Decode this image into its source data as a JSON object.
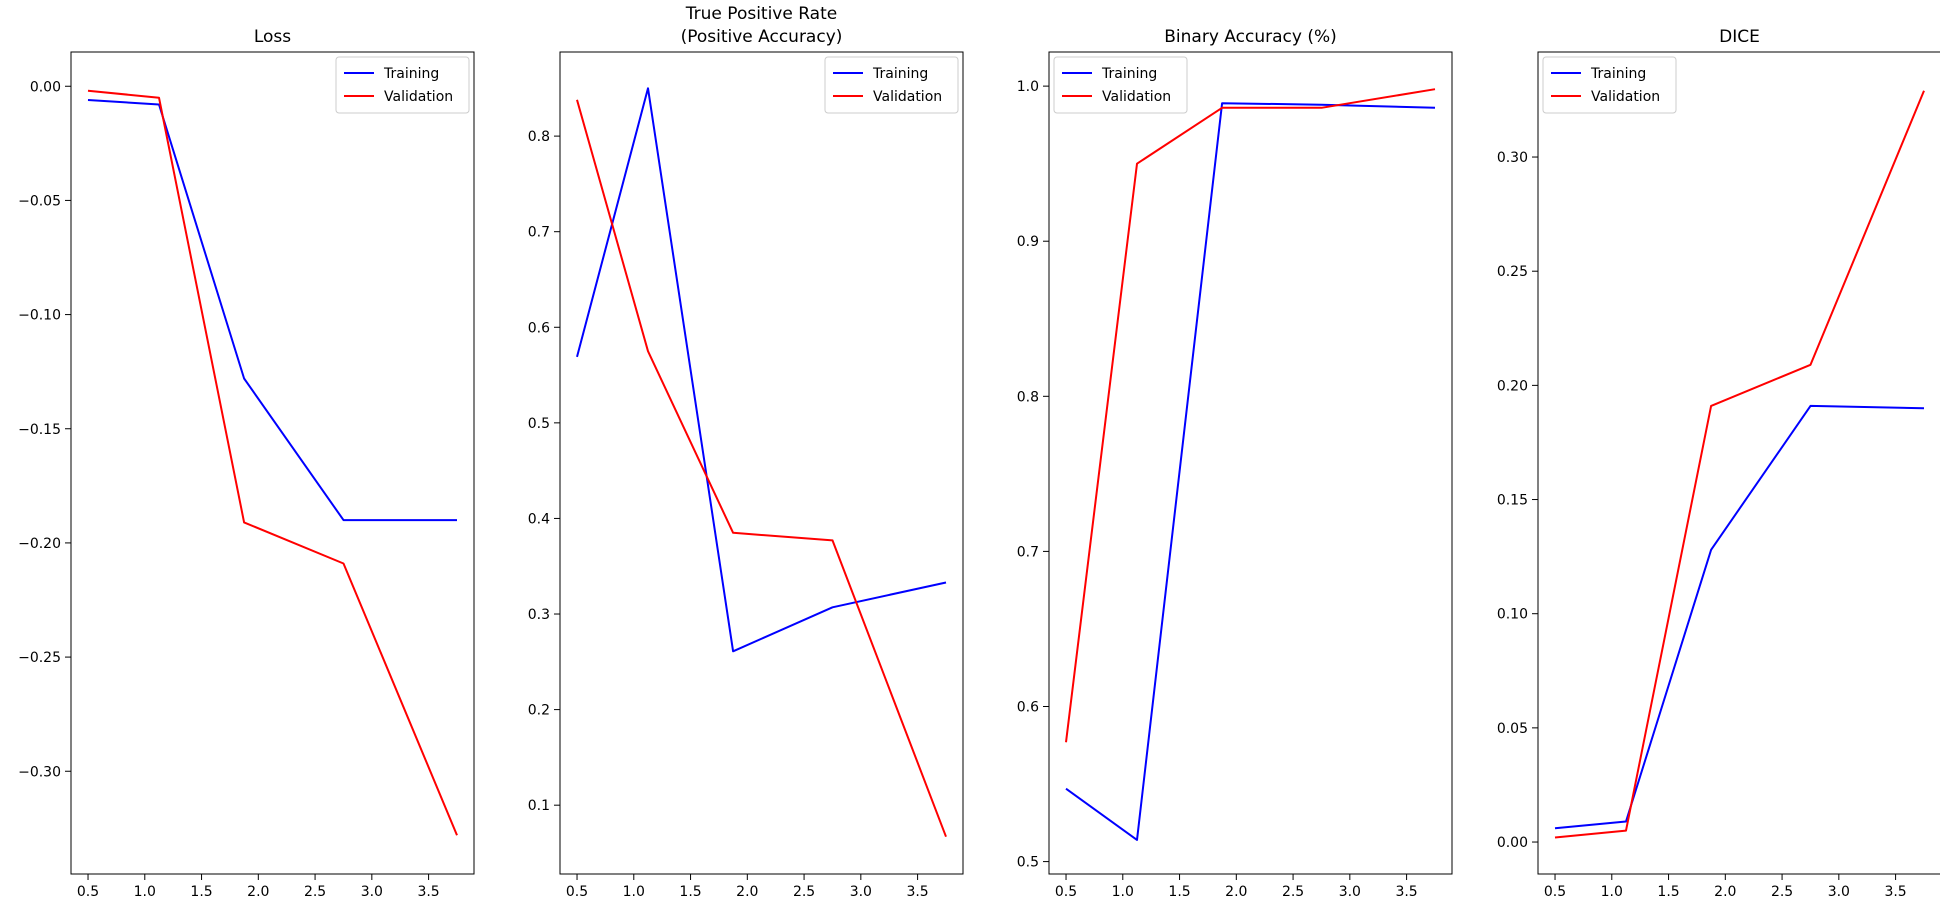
{
  "chart_data": [
    {
      "type": "line",
      "title": "Loss",
      "x": [
        0.5,
        1.125,
        1.875,
        2.75,
        3.75
      ],
      "series": [
        {
          "name": "Training",
          "color": "#0000ff",
          "values": [
            -0.006,
            -0.008,
            -0.128,
            -0.19,
            -0.19
          ]
        },
        {
          "name": "Validation",
          "color": "#ff0000",
          "values": [
            -0.002,
            -0.005,
            -0.191,
            -0.209,
            -0.328
          ]
        }
      ],
      "xlim": [
        0.35,
        3.9
      ],
      "ylim": [
        -0.345,
        0.015
      ],
      "xticks": [
        {
          "value": 0.5,
          "label": "0.5"
        },
        {
          "value": 1.0,
          "label": "1.0"
        },
        {
          "value": 1.5,
          "label": "1.5"
        },
        {
          "value": 2.0,
          "label": "2.0"
        },
        {
          "value": 2.5,
          "label": "2.5"
        },
        {
          "value": 3.0,
          "label": "3.0"
        },
        {
          "value": 3.5,
          "label": "3.5"
        }
      ],
      "yticks": [
        {
          "value": 0.0,
          "label": "0.00"
        },
        {
          "value": -0.05,
          "label": "−0.05"
        },
        {
          "value": -0.1,
          "label": "−0.10"
        },
        {
          "value": -0.15,
          "label": "−0.15"
        },
        {
          "value": -0.2,
          "label": "−0.20"
        },
        {
          "value": -0.25,
          "label": "−0.25"
        },
        {
          "value": -0.3,
          "label": "−0.30"
        }
      ],
      "legend": "top-right",
      "grid": false
    },
    {
      "type": "line",
      "title": "True Positive Rate",
      "subtitle": "(Positive Accuracy)",
      "x": [
        0.5,
        1.125,
        1.875,
        2.75,
        3.75
      ],
      "series": [
        {
          "name": "Training",
          "color": "#0000ff",
          "values": [
            0.569,
            0.85,
            0.261,
            0.307,
            0.333
          ]
        },
        {
          "name": "Validation",
          "color": "#ff0000",
          "values": [
            0.838,
            0.575,
            0.385,
            0.377,
            0.067
          ]
        }
      ],
      "xlim": [
        0.35,
        3.9
      ],
      "ylim": [
        0.028,
        0.888
      ],
      "xticks": [
        {
          "value": 0.5,
          "label": "0.5"
        },
        {
          "value": 1.0,
          "label": "1.0"
        },
        {
          "value": 1.5,
          "label": "1.5"
        },
        {
          "value": 2.0,
          "label": "2.0"
        },
        {
          "value": 2.5,
          "label": "2.5"
        },
        {
          "value": 3.0,
          "label": "3.0"
        },
        {
          "value": 3.5,
          "label": "3.5"
        }
      ],
      "yticks": [
        {
          "value": 0.1,
          "label": "0.1"
        },
        {
          "value": 0.2,
          "label": "0.2"
        },
        {
          "value": 0.3,
          "label": "0.3"
        },
        {
          "value": 0.4,
          "label": "0.4"
        },
        {
          "value": 0.5,
          "label": "0.5"
        },
        {
          "value": 0.6,
          "label": "0.6"
        },
        {
          "value": 0.7,
          "label": "0.7"
        },
        {
          "value": 0.8,
          "label": "0.8"
        }
      ],
      "legend": "top-right",
      "grid": false
    },
    {
      "type": "line",
      "title": "Binary Accuracy (%)",
      "x": [
        0.5,
        1.125,
        1.875,
        2.75,
        3.75
      ],
      "series": [
        {
          "name": "Training",
          "color": "#0000ff",
          "values": [
            0.547,
            0.514,
            0.989,
            0.988,
            0.986
          ]
        },
        {
          "name": "Validation",
          "color": "#ff0000",
          "values": [
            0.577,
            0.95,
            0.986,
            0.986,
            0.998
          ]
        }
      ],
      "xlim": [
        0.35,
        3.9
      ],
      "ylim": [
        0.492,
        1.022
      ],
      "xticks": [
        {
          "value": 0.5,
          "label": "0.5"
        },
        {
          "value": 1.0,
          "label": "1.0"
        },
        {
          "value": 1.5,
          "label": "1.5"
        },
        {
          "value": 2.0,
          "label": "2.0"
        },
        {
          "value": 2.5,
          "label": "2.5"
        },
        {
          "value": 3.0,
          "label": "3.0"
        },
        {
          "value": 3.5,
          "label": "3.5"
        }
      ],
      "yticks": [
        {
          "value": 0.5,
          "label": "0.5"
        },
        {
          "value": 0.6,
          "label": "0.6"
        },
        {
          "value": 0.7,
          "label": "0.7"
        },
        {
          "value": 0.8,
          "label": "0.8"
        },
        {
          "value": 0.9,
          "label": "0.9"
        },
        {
          "value": 1.0,
          "label": "1.0"
        }
      ],
      "legend": "top-left",
      "grid": false
    },
    {
      "type": "line",
      "title": "DICE",
      "x": [
        0.5,
        1.125,
        1.875,
        2.75,
        3.75
      ],
      "series": [
        {
          "name": "Training",
          "color": "#0000ff",
          "values": [
            0.006,
            0.009,
            0.128,
            0.191,
            0.19
          ]
        },
        {
          "name": "Validation",
          "color": "#ff0000",
          "values": [
            0.002,
            0.005,
            0.191,
            0.209,
            0.329
          ]
        }
      ],
      "xlim": [
        0.35,
        3.9
      ],
      "ylim": [
        -0.014,
        0.346
      ],
      "xticks": [
        {
          "value": 0.5,
          "label": "0.5"
        },
        {
          "value": 1.0,
          "label": "1.0"
        },
        {
          "value": 1.5,
          "label": "1.5"
        },
        {
          "value": 2.0,
          "label": "2.0"
        },
        {
          "value": 2.5,
          "label": "2.5"
        },
        {
          "value": 3.0,
          "label": "3.0"
        },
        {
          "value": 3.5,
          "label": "3.5"
        }
      ],
      "yticks": [
        {
          "value": 0.0,
          "label": "0.00"
        },
        {
          "value": 0.05,
          "label": "0.05"
        },
        {
          "value": 0.1,
          "label": "0.10"
        },
        {
          "value": 0.15,
          "label": "0.15"
        },
        {
          "value": 0.2,
          "label": "0.20"
        },
        {
          "value": 0.25,
          "label": "0.25"
        },
        {
          "value": 0.3,
          "label": "0.30"
        }
      ],
      "legend": "top-left",
      "grid": false
    }
  ]
}
